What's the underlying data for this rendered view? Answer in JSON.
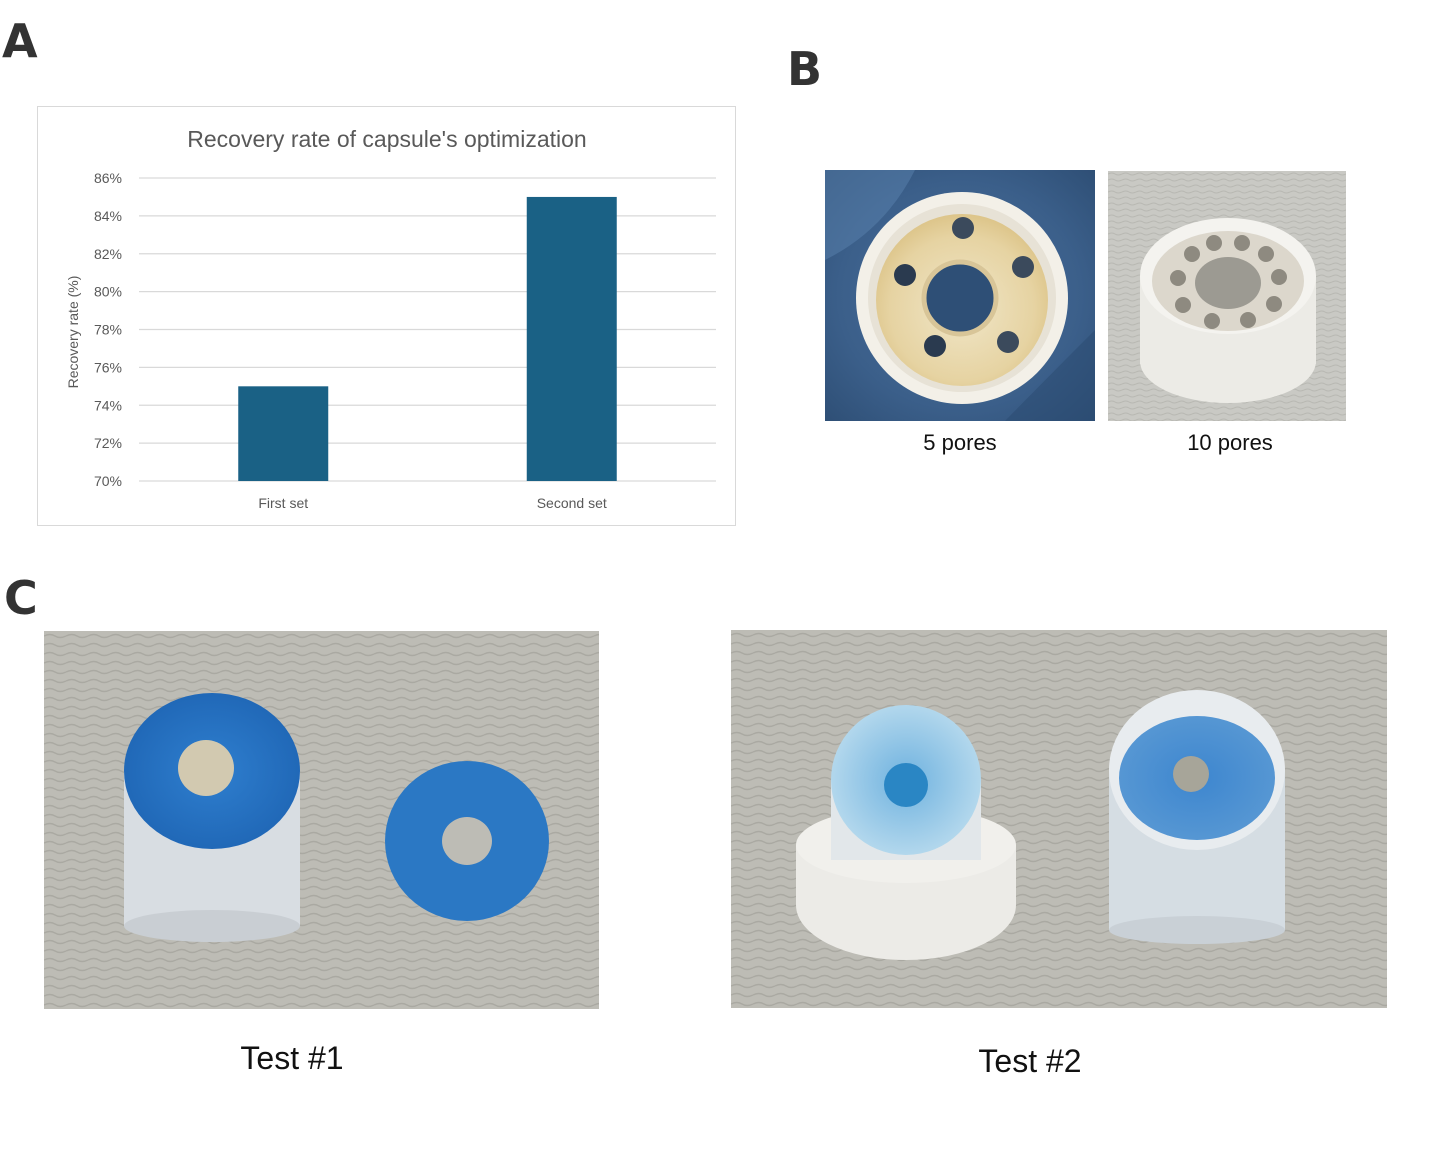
{
  "panels": {
    "a": "A",
    "b": "B",
    "c": "C"
  },
  "chart_data": {
    "type": "bar",
    "title": "Recovery rate of capsule's optimization",
    "categories": [
      "First set",
      "Second set"
    ],
    "values": [
      75,
      85
    ],
    "ylabel": "Recovery rate (%)",
    "xlabel": "",
    "ylim": [
      70,
      86
    ],
    "yticks": [
      "70%",
      "72%",
      "74%",
      "76%",
      "78%",
      "80%",
      "82%",
      "84%",
      "86%"
    ],
    "grid": true,
    "bar_color": "#1a6185"
  },
  "panel_b": {
    "captions": [
      "5 pores",
      "10 pores"
    ]
  },
  "panel_c": {
    "captions": [
      "Test #1",
      "Test #2"
    ]
  }
}
